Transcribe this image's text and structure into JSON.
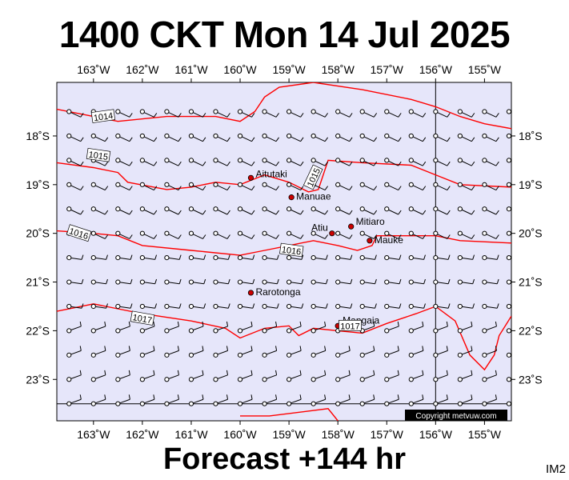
{
  "title": "1400 CKT Mon 14 Jul 2025",
  "footer": "Forecast +144 hr",
  "corner_label": "IM2",
  "copyright": "Copyright metvuw.com",
  "colors": {
    "ocean": "#e6e6fa",
    "isobar": "#ff0000",
    "island": "#cc0000",
    "barb": "#000000"
  },
  "map": {
    "lon_range": [
      -163.75,
      -154.45
    ],
    "lat_range": [
      -23.85,
      -16.9
    ],
    "reference_lines": {
      "lon": -156,
      "lat": -23.5
    },
    "lon_ticks": [
      {
        "lon": -163,
        "label": "163˚W"
      },
      {
        "lon": -162,
        "label": "162˚W"
      },
      {
        "lon": -161,
        "label": "161˚W"
      },
      {
        "lon": -160,
        "label": "160˚W"
      },
      {
        "lon": -159,
        "label": "159˚W"
      },
      {
        "lon": -158,
        "label": "158˚W"
      },
      {
        "lon": -157,
        "label": "157˚W"
      },
      {
        "lon": -156,
        "label": "156˚W"
      },
      {
        "lon": -155,
        "label": "155˚W"
      }
    ],
    "lat_ticks": [
      {
        "lat": -18,
        "label": "18˚S"
      },
      {
        "lat": -19,
        "label": "19˚S"
      },
      {
        "lat": -20,
        "label": "20˚S"
      },
      {
        "lat": -21,
        "label": "21˚S"
      },
      {
        "lat": -22,
        "label": "22˚S"
      },
      {
        "lat": -23,
        "label": "23˚S"
      }
    ],
    "islands": [
      {
        "name": "Aitutaki",
        "lon": -159.78,
        "lat": -18.86
      },
      {
        "name": "Manuae",
        "lon": -158.95,
        "lat": -19.26
      },
      {
        "name": "Mitiaro",
        "lon": -157.73,
        "lat": -19.86
      },
      {
        "name": "Atiu",
        "lon": -158.12,
        "lat": -20.0
      },
      {
        "name": "Mauke",
        "lon": -157.35,
        "lat": -20.15
      },
      {
        "name": "Rarotonga",
        "lon": -159.78,
        "lat": -21.22
      },
      {
        "name": "Mangaia",
        "lon": -158.0,
        "lat": -21.9
      }
    ],
    "isobars": [
      {
        "label": "1014",
        "label_at": [
          -162.8,
          -17.6
        ],
        "label_angle": -8,
        "points": [
          [
            -163.75,
            -17.45
          ],
          [
            -163,
            -17.6
          ],
          [
            -162.5,
            -17.7
          ],
          [
            -161.5,
            -17.6
          ],
          [
            -160.5,
            -17.6
          ],
          [
            -160,
            -17.7
          ],
          [
            -159.7,
            -17.5
          ],
          [
            -159.5,
            -17.2
          ],
          [
            -159.2,
            -17.0
          ],
          [
            -158.5,
            -16.9
          ],
          [
            -157.5,
            -17.05
          ],
          [
            -156.5,
            -17.25
          ],
          [
            -156,
            -17.4
          ],
          [
            -155.5,
            -17.6
          ],
          [
            -155,
            -17.75
          ],
          [
            -154.45,
            -17.85
          ]
        ]
      },
      {
        "label": "1015",
        "label_at": [
          -162.9,
          -18.4
        ],
        "label_angle": 8,
        "points": [
          [
            -163.75,
            -18.55
          ],
          [
            -163,
            -18.65
          ],
          [
            -162.5,
            -18.75
          ],
          [
            -162.3,
            -18.95
          ],
          [
            -161.5,
            -19.1
          ],
          [
            -161,
            -19.05
          ],
          [
            -160.5,
            -18.95
          ],
          [
            -160,
            -19.0
          ],
          [
            -159.5,
            -18.8
          ],
          [
            -159,
            -18.95
          ],
          [
            -158.6,
            -19.15
          ],
          [
            -158.4,
            -19.1
          ],
          [
            -158.2,
            -18.5
          ],
          [
            -157.5,
            -18.55
          ],
          [
            -156.5,
            -18.6
          ],
          [
            -156,
            -18.8
          ],
          [
            -155.5,
            -19.0
          ],
          [
            -154.45,
            -19.05
          ]
        ]
      },
      {
        "label": "1015",
        "label_at": [
          -158.5,
          -18.85
        ],
        "label_angle": -65,
        "points": []
      },
      {
        "label": "1016",
        "label_at": [
          -163.3,
          -20.0
        ],
        "label_angle": 18,
        "points": [
          [
            -163.75,
            -19.95
          ],
          [
            -163,
            -20.0
          ],
          [
            -162.5,
            -20.05
          ],
          [
            -162,
            -20.25
          ],
          [
            -161,
            -20.35
          ],
          [
            -160,
            -20.45
          ],
          [
            -159.5,
            -20.35
          ],
          [
            -159,
            -20.25
          ],
          [
            -158.5,
            -20.15
          ],
          [
            -158,
            -20.25
          ],
          [
            -157.6,
            -20.35
          ],
          [
            -157.3,
            -20.25
          ],
          [
            -157.2,
            -20.05
          ],
          [
            -156.5,
            -20.05
          ],
          [
            -156,
            -20.05
          ],
          [
            -155.5,
            -20.15
          ],
          [
            -154.45,
            -20.2
          ]
        ]
      },
      {
        "label": "1016",
        "label_at": [
          -158.95,
          -20.35
        ],
        "label_angle": 8,
        "points": []
      },
      {
        "label": "1017",
        "label_at": [
          -162,
          -21.75
        ],
        "label_angle": 10,
        "points": [
          [
            -163.75,
            -21.6
          ],
          [
            -163,
            -21.45
          ],
          [
            -162.5,
            -21.55
          ],
          [
            -162,
            -21.65
          ],
          [
            -161,
            -21.8
          ],
          [
            -160.3,
            -21.95
          ],
          [
            -160,
            -22.15
          ],
          [
            -159.5,
            -21.95
          ],
          [
            -159,
            -21.9
          ],
          [
            -158.8,
            -22.1
          ],
          [
            -158.5,
            -21.95
          ],
          [
            -158,
            -22.0
          ],
          [
            -157.5,
            -22.05
          ],
          [
            -157,
            -21.85
          ],
          [
            -156.4,
            -21.65
          ],
          [
            -156,
            -21.5
          ],
          [
            -155.6,
            -21.8
          ],
          [
            -155.3,
            -22.5
          ],
          [
            -155.0,
            -22.8
          ],
          [
            -154.8,
            -22.5
          ],
          [
            -154.7,
            -22.1
          ],
          [
            -154.45,
            -21.7
          ]
        ]
      },
      {
        "label": "1017",
        "label_at": [
          -157.75,
          -21.9
        ],
        "label_angle": 0,
        "points": []
      },
      {
        "label": "",
        "label_at": null,
        "label_angle": 0,
        "points": [
          [
            -160.0,
            -23.75
          ],
          [
            -159.4,
            -23.75
          ],
          [
            -158.2,
            -23.6
          ],
          [
            -158.0,
            -23.85
          ]
        ]
      }
    ],
    "barb_grid": {
      "lon_start": -163.5,
      "lon_step": 0.5,
      "lon_count": 19,
      "lat_start": -17.5,
      "lat_step": -0.5,
      "lat_count": 13
    }
  }
}
